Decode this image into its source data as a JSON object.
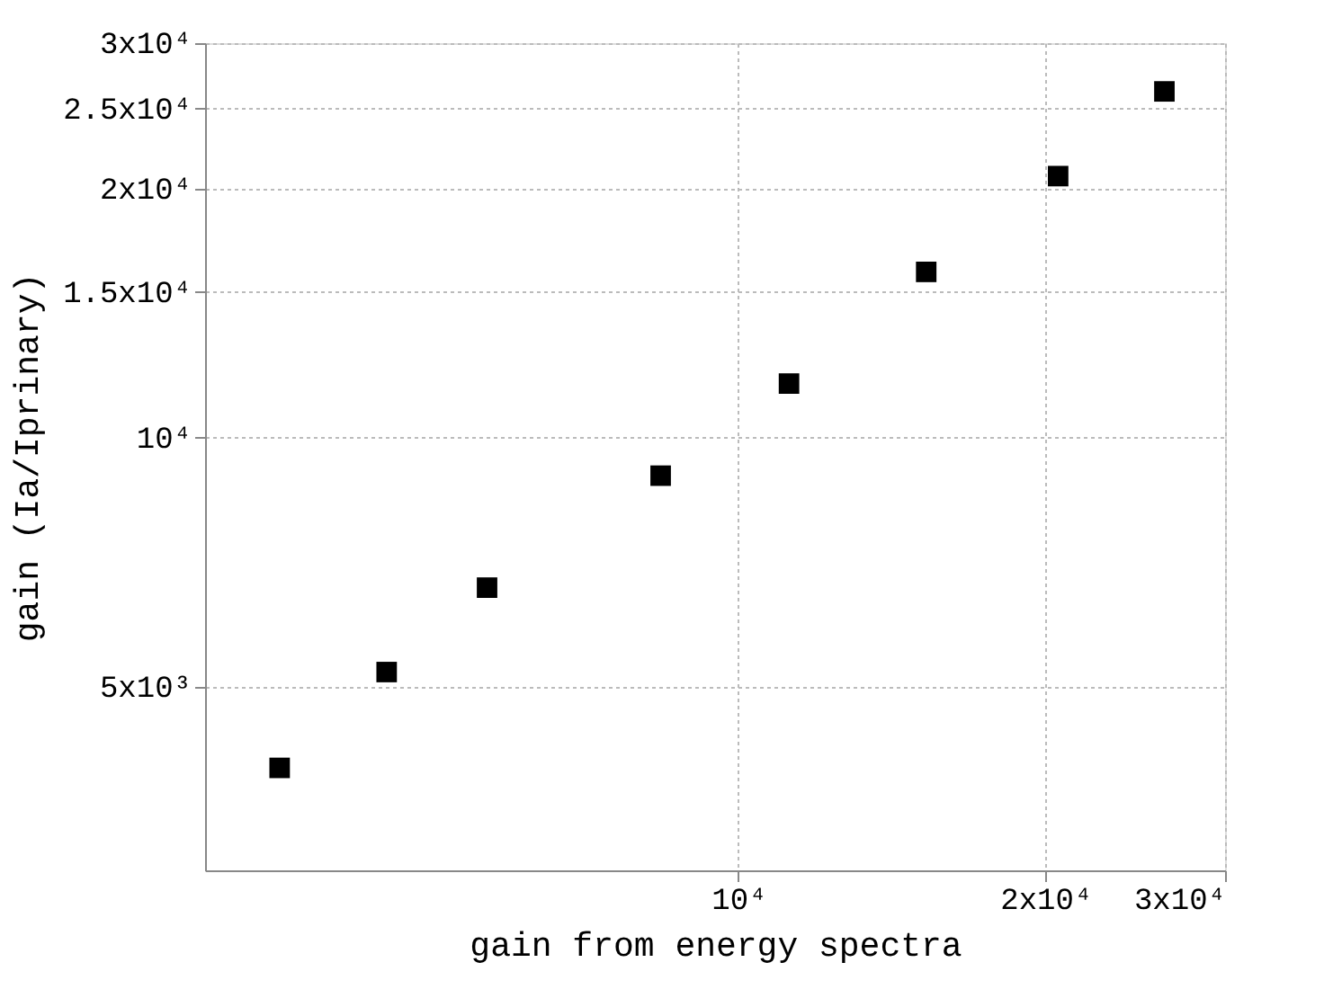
{
  "chart_data": {
    "type": "scatter",
    "xlabel": "gain from energy spectra",
    "ylabel": "gain (Ia/Iprinary)",
    "x": [
      3550,
      4520,
      5670,
      8390,
      11210,
      15280,
      20580,
      26160
    ],
    "values": [
      3990,
      5210,
      6590,
      9000,
      11630,
      15870,
      20720,
      26230
    ],
    "color": "#000000",
    "marker": "square",
    "log": "xy",
    "grid": true,
    "xlim": [
      3000,
      30000
    ],
    "ylim": [
      3000,
      30000
    ],
    "xticks": [
      {
        "value": 10000,
        "label": "10⁴"
      },
      {
        "value": 20000,
        "label": "2x10⁴"
      },
      {
        "value": 30000,
        "label": "3x10⁴"
      }
    ],
    "yticks": [
      {
        "value": 5000,
        "label": "5x10³"
      },
      {
        "value": 10000,
        "label": "10⁴"
      },
      {
        "value": 15000,
        "label": "1.5x10⁴"
      },
      {
        "value": 20000,
        "label": "2x10⁴"
      },
      {
        "value": 25000,
        "label": "2.5x10⁴"
      },
      {
        "value": 30000,
        "label": "3x10⁴"
      }
    ]
  }
}
